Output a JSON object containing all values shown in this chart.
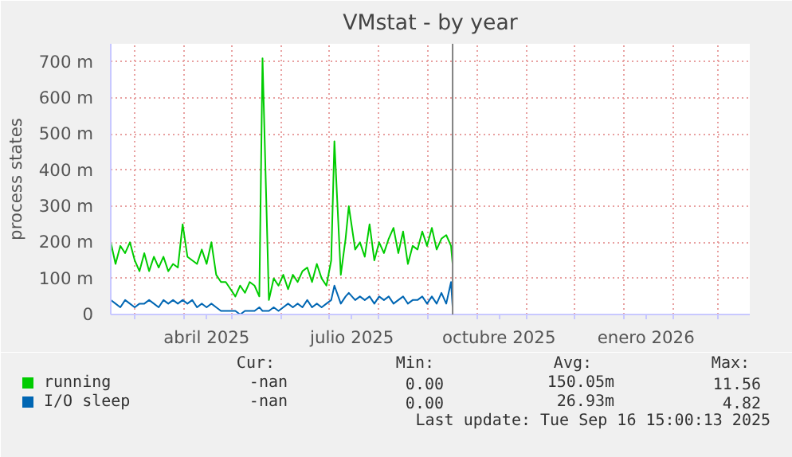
{
  "chart_data": {
    "type": "line",
    "title": "VMstat - by year",
    "ylabel": "process states",
    "x": [
      "2025-02-14",
      "2025-02-17",
      "2025-02-20",
      "2025-02-23",
      "2025-02-26",
      "2025-03-01",
      "2025-03-04",
      "2025-03-07",
      "2025-03-10",
      "2025-03-13",
      "2025-03-16",
      "2025-03-19",
      "2025-03-22",
      "2025-03-25",
      "2025-03-28",
      "2025-03-31",
      "2025-04-03",
      "2025-04-06",
      "2025-04-09",
      "2025-04-12",
      "2025-04-15",
      "2025-04-18",
      "2025-04-21",
      "2025-04-24",
      "2025-04-27",
      "2025-04-30",
      "2025-05-03",
      "2025-05-06",
      "2025-05-09",
      "2025-05-12",
      "2025-05-15",
      "2025-05-18",
      "2025-05-20",
      "2025-05-24",
      "2025-05-27",
      "2025-05-30",
      "2025-06-02",
      "2025-06-05",
      "2025-06-08",
      "2025-06-11",
      "2025-06-14",
      "2025-06-17",
      "2025-06-20",
      "2025-06-23",
      "2025-06-26",
      "2025-06-29",
      "2025-07-02",
      "2025-07-04",
      "2025-07-08",
      "2025-07-11",
      "2025-07-13",
      "2025-07-17",
      "2025-07-20",
      "2025-07-23",
      "2025-07-26",
      "2025-07-29",
      "2025-08-01",
      "2025-08-04",
      "2025-08-07",
      "2025-08-10",
      "2025-08-13",
      "2025-08-16",
      "2025-08-19",
      "2025-08-22",
      "2025-08-25",
      "2025-08-28",
      "2025-08-31",
      "2025-09-03",
      "2025-09-06",
      "2025-09-09",
      "2025-09-12",
      "2025-09-15",
      "2025-09-16"
    ],
    "series": [
      {
        "name": "running",
        "color": "#00cc00",
        "values": [
          200,
          140,
          190,
          170,
          200,
          150,
          120,
          170,
          120,
          160,
          130,
          160,
          120,
          140,
          130,
          250,
          160,
          150,
          140,
          180,
          140,
          200,
          110,
          90,
          90,
          70,
          50,
          80,
          60,
          90,
          80,
          50,
          710,
          40,
          100,
          80,
          110,
          70,
          110,
          90,
          120,
          130,
          90,
          140,
          100,
          80,
          150,
          480,
          110,
          210,
          300,
          180,
          200,
          160,
          250,
          150,
          200,
          170,
          210,
          240,
          170,
          230,
          140,
          190,
          180,
          230,
          190,
          240,
          180,
          210,
          220,
          190,
          140
        ]
      },
      {
        "name": "I/O sleep",
        "color": "#0066b3",
        "values": [
          40,
          30,
          20,
          40,
          30,
          20,
          30,
          30,
          40,
          30,
          20,
          40,
          30,
          40,
          30,
          40,
          30,
          40,
          20,
          30,
          20,
          30,
          20,
          10,
          10,
          10,
          10,
          0,
          10,
          10,
          10,
          20,
          10,
          10,
          20,
          10,
          20,
          30,
          20,
          30,
          20,
          40,
          20,
          30,
          20,
          30,
          40,
          80,
          30,
          50,
          60,
          40,
          50,
          40,
          50,
          30,
          50,
          40,
          50,
          30,
          40,
          50,
          30,
          40,
          40,
          50,
          30,
          50,
          30,
          60,
          30,
          90,
          20
        ]
      }
    ],
    "xlim": [
      "2025-02-14",
      "2026-03-21"
    ],
    "xticks": [
      {
        "value": "2025-03-01",
        "label": null
      },
      {
        "value": "2025-04-01",
        "label": null
      },
      {
        "value": "2025-04-15",
        "label": "abril 2025"
      },
      {
        "value": "2025-05-01",
        "label": null
      },
      {
        "value": "2025-06-01",
        "label": null
      },
      {
        "value": "2025-07-01",
        "label": null
      },
      {
        "value": "2025-07-15",
        "label": "julio 2025"
      },
      {
        "value": "2025-08-01",
        "label": null
      },
      {
        "value": "2025-09-01",
        "label": null
      },
      {
        "value": "2025-10-01",
        "label": null
      },
      {
        "value": "2025-10-15",
        "label": "octubre 2025"
      },
      {
        "value": "2025-11-01",
        "label": null
      },
      {
        "value": "2025-12-01",
        "label": null
      },
      {
        "value": "2026-01-01",
        "label": null
      },
      {
        "value": "2026-01-15",
        "label": "enero 2026"
      },
      {
        "value": "2026-02-01",
        "label": null
      },
      {
        "value": "2026-03-01",
        "label": null
      }
    ],
    "ylim": [
      0,
      750
    ],
    "yticks": [
      0,
      {
        "value": 100,
        "label": "100 m"
      },
      {
        "value": 200,
        "label": "200 m"
      },
      {
        "value": 300,
        "label": "300 m"
      },
      {
        "value": 400,
        "label": "400 m"
      },
      {
        "value": 500,
        "label": "500 m"
      },
      {
        "value": 600,
        "label": "600 m"
      },
      {
        "value": 700,
        "label": "700 m"
      }
    ],
    "grid": true,
    "legend": "bottom",
    "ref_lines": [
      {
        "axis": "x",
        "value": "2025-09-16",
        "color": "#808080"
      }
    ],
    "annotations": [
      "Cur:",
      "Min:",
      "Avg:",
      "Max:",
      "-nan",
      "0.00",
      "150.05m",
      "11.56",
      "-nan",
      "0.00",
      "26.93m",
      "4.82",
      "Last update: Tue Sep 16 15:00:13 2025"
    ]
  }
}
